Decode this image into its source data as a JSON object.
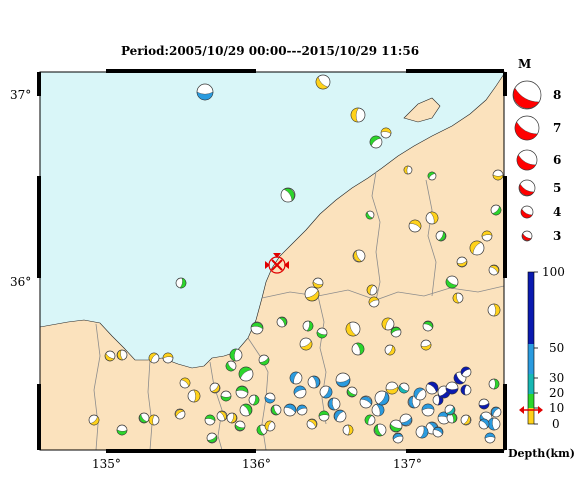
{
  "title": "Period:2005/10/29 00:00---2015/10/29 11:56",
  "axes": {
    "lat_labels": [
      "37°",
      "36°"
    ],
    "lon_labels": [
      "135°",
      "136°",
      "137°"
    ]
  },
  "magnitude_legend": {
    "title": "M",
    "levels": [
      "8",
      "7",
      "6",
      "5",
      "4",
      "3"
    ]
  },
  "depth_scale": {
    "ticks": [
      "100",
      "50",
      "30",
      "20",
      "10",
      "0"
    ],
    "label": "Depth(km)"
  },
  "colors": {
    "sea": "#d9f6f8",
    "land": "#fbe2bd",
    "border": "#9a9a9a",
    "frame": "#000000",
    "legend_red": "#ff0000",
    "depth_0_10": "#ffd21a",
    "depth_10_20": "#2bd62b",
    "depth_20_30": "#17b7b3",
    "depth_30_50": "#2a9bdf",
    "depth_50_100": "#0a1ab0"
  }
}
